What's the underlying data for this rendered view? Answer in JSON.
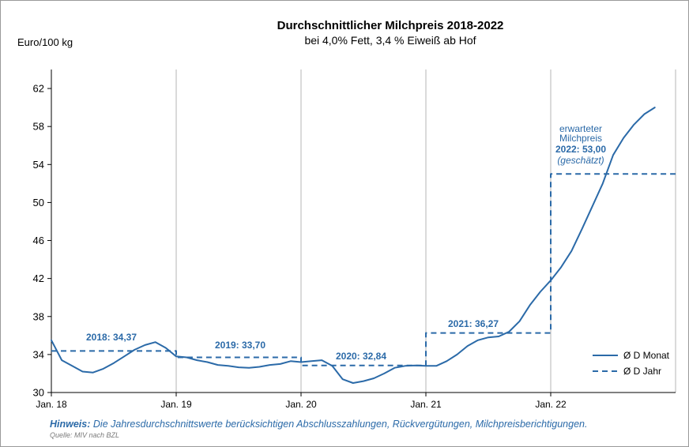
{
  "colors": {
    "series": "#2b6aa8",
    "grid": "#b5b5b5",
    "axis": "#000000",
    "annotation": "#2b6aa8"
  },
  "note": {
    "label": "Hinweis:",
    "text": "Die Jahresdurchschnittswerte berücksichtigen Abschlusszahlungen, Rückvergütungen, Milchpreisberichtigungen."
  },
  "source": "Quelle: MIV nach BZL",
  "chart_data": {
    "type": "line",
    "title": "Durchschnittlicher Milchpreis 2018-2022",
    "subtitle": "bei 4,0% Fett, 3,4 % Eiweiß ab Hof",
    "ylabel": "Euro/100 kg",
    "xlabel": "",
    "ylim": [
      30,
      64
    ],
    "yticks": [
      30,
      34,
      38,
      42,
      46,
      50,
      54,
      58,
      62
    ],
    "xlim": [
      "2018-01",
      "2023-01"
    ],
    "xticks": [
      {
        "x": "2018-01",
        "label": "Jan. 18"
      },
      {
        "x": "2019-01",
        "label": "Jan. 19"
      },
      {
        "x": "2020-01",
        "label": "Jan. 20"
      },
      {
        "x": "2021-01",
        "label": "Jan. 21"
      },
      {
        "x": "2022-01",
        "label": "Jan. 22"
      }
    ],
    "grid": {
      "vertical": true,
      "horizontal": false
    },
    "legend_position": "bottom-right",
    "series": [
      {
        "name": "Ø D Monat",
        "style": "solid",
        "points": [
          [
            "2018-01",
            35.5
          ],
          [
            "2018-02",
            33.4
          ],
          [
            "2018-03",
            32.8
          ],
          [
            "2018-04",
            32.2
          ],
          [
            "2018-05",
            32.1
          ],
          [
            "2018-06",
            32.5
          ],
          [
            "2018-07",
            33.1
          ],
          [
            "2018-08",
            33.8
          ],
          [
            "2018-09",
            34.5
          ],
          [
            "2018-10",
            35.0
          ],
          [
            "2018-11",
            35.3
          ],
          [
            "2018-12",
            34.7
          ],
          [
            "2019-01",
            33.8
          ],
          [
            "2019-02",
            33.7
          ],
          [
            "2019-03",
            33.4
          ],
          [
            "2019-04",
            33.2
          ],
          [
            "2019-05",
            32.9
          ],
          [
            "2019-06",
            32.8
          ],
          [
            "2019-07",
            32.65
          ],
          [
            "2019-08",
            32.6
          ],
          [
            "2019-09",
            32.7
          ],
          [
            "2019-10",
            32.9
          ],
          [
            "2019-11",
            33.0
          ],
          [
            "2019-12",
            33.3
          ],
          [
            "2020-01",
            33.2
          ],
          [
            "2020-02",
            33.3
          ],
          [
            "2020-03",
            33.4
          ],
          [
            "2020-04",
            32.8
          ],
          [
            "2020-05",
            31.4
          ],
          [
            "2020-06",
            31.0
          ],
          [
            "2020-07",
            31.2
          ],
          [
            "2020-08",
            31.5
          ],
          [
            "2020-09",
            32.0
          ],
          [
            "2020-10",
            32.6
          ],
          [
            "2020-11",
            32.8
          ],
          [
            "2020-12",
            32.85
          ],
          [
            "2021-01",
            32.8
          ],
          [
            "2021-02",
            32.8
          ],
          [
            "2021-03",
            33.3
          ],
          [
            "2021-04",
            34.0
          ],
          [
            "2021-05",
            34.9
          ],
          [
            "2021-06",
            35.5
          ],
          [
            "2021-07",
            35.8
          ],
          [
            "2021-08",
            35.9
          ],
          [
            "2021-09",
            36.4
          ],
          [
            "2021-10",
            37.5
          ],
          [
            "2021-11",
            39.2
          ],
          [
            "2021-12",
            40.6
          ],
          [
            "2022-01",
            41.8
          ],
          [
            "2022-02",
            43.2
          ],
          [
            "2022-03",
            44.9
          ],
          [
            "2022-04",
            47.2
          ],
          [
            "2022-05",
            49.6
          ],
          [
            "2022-06",
            52.0
          ],
          [
            "2022-07",
            55.0
          ],
          [
            "2022-08",
            56.8
          ],
          [
            "2022-09",
            58.2
          ],
          [
            "2022-10",
            59.3
          ],
          [
            "2022-11",
            60.0
          ]
        ]
      },
      {
        "name": "Ø D Jahr",
        "style": "dashed",
        "points": [
          [
            "2018-01",
            34.37
          ],
          [
            "2019-01",
            34.37
          ],
          [
            "2019-01",
            33.7
          ],
          [
            "2020-01",
            33.7
          ],
          [
            "2020-01",
            32.84
          ],
          [
            "2021-01",
            32.84
          ],
          [
            "2021-01",
            36.27
          ],
          [
            "2022-01",
            36.27
          ],
          [
            "2022-01",
            53.0
          ],
          [
            "2023-01",
            53.0
          ]
        ]
      }
    ],
    "annotations": [
      {
        "text": "2018: 34,37",
        "x": "2018-06",
        "y": 34.37
      },
      {
        "text": "2019: 33,70",
        "x": "2019-07",
        "y": 33.7
      },
      {
        "text": "2020: 32,84",
        "x": "2020-06",
        "y": 32.84
      },
      {
        "text": "2021: 36,27",
        "x": "2021-06",
        "y": 36.27
      },
      {
        "text": "erwarteter",
        "x": "2022-04",
        "y": 53.0
      },
      {
        "text": "Milchpreis",
        "x": "2022-04",
        "y": 53.0
      },
      {
        "text": "2022: 53,00",
        "x": "2022-04",
        "y": 53.0
      },
      {
        "text": "(geschätzt)",
        "x": "2022-04",
        "y": 53.0
      }
    ]
  }
}
